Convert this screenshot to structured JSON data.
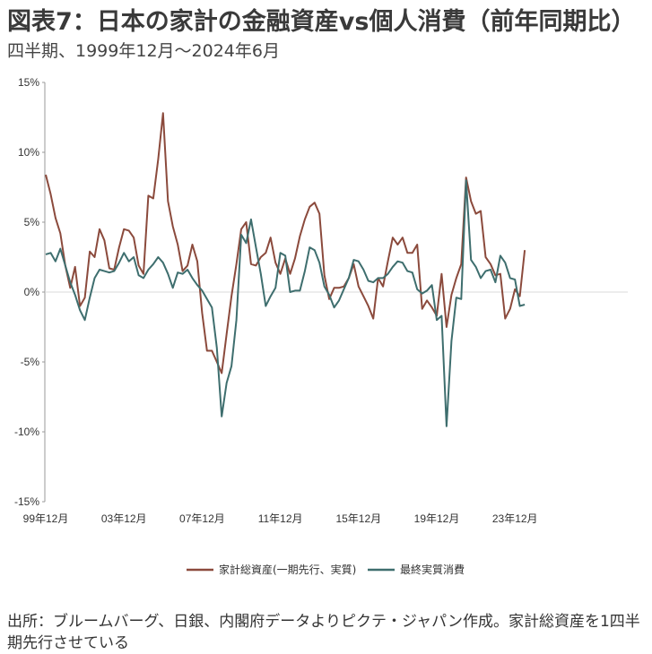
{
  "title": "図表7：日本の家計の金融資産vs個人消費（前年同期比）",
  "subtitle": "四半期、1999年12月～2024年6月",
  "source": "出所：ブルームバーグ、日銀、内閣府データよりピクテ・ジャパン作成。家計総資産を1四半期先行させている",
  "chart_data": {
    "type": "line",
    "title": "図表7：日本の家計の金融資産vs個人消費（前年同期比）",
    "subtitle": "四半期、1999年12月～2024年6月",
    "xlabel": "",
    "ylabel": "",
    "x_start": "1999-12",
    "x_step": "quarter",
    "x_ticks": [
      {
        "label": "99年12月",
        "index": 0
      },
      {
        "label": "03年12月",
        "index": 16
      },
      {
        "label": "07年12月",
        "index": 32
      },
      {
        "label": "11年12月",
        "index": 48
      },
      {
        "label": "15年12月",
        "index": 64
      },
      {
        "label": "19年12月",
        "index": 80
      },
      {
        "label": "23年12月",
        "index": 96
      }
    ],
    "y_ticks": [
      "15%",
      "10%",
      "5%",
      "0%",
      "-5%",
      "-10%",
      "-15%"
    ],
    "ylim": [
      -15,
      15
    ],
    "grid": false,
    "legend_position": "bottom",
    "series": [
      {
        "name": "家計総資産(一期先行、実質)",
        "color": "#8B4A3C",
        "values": [
          8.4,
          7.0,
          5.3,
          4.2,
          1.9,
          0.3,
          1.8,
          -1.0,
          -0.4,
          2.9,
          2.5,
          4.5,
          3.7,
          1.7,
          1.6,
          3.2,
          4.5,
          4.4,
          3.9,
          1.9,
          1.3,
          6.9,
          6.7,
          9.5,
          12.8,
          6.5,
          4.7,
          3.4,
          1.5,
          1.9,
          3.4,
          2.2,
          -1.5,
          -4.2,
          -4.2,
          -5.0,
          -5.8,
          -3.0,
          -0.3,
          2.0,
          4.5,
          5.0,
          2.0,
          1.9,
          2.5,
          2.8,
          3.9,
          2.1,
          1.3,
          2.4,
          1.3,
          2.4,
          4.0,
          5.2,
          6.1,
          6.4,
          5.6,
          1.2,
          -0.5,
          0.3,
          0.3,
          0.4,
          1.0,
          2.0,
          0.4,
          -0.3,
          -1.0,
          -1.9,
          1.0,
          0.4,
          2.2,
          3.9,
          3.4,
          3.9,
          2.8,
          2.8,
          3.4,
          -1.2,
          -0.6,
          -1.1,
          -1.7,
          1.3,
          -2.5,
          -0.2,
          1.0,
          2.0,
          8.2,
          6.5,
          5.6,
          5.8,
          2.5,
          2.0,
          1.2,
          1.3,
          -1.9,
          -1.2,
          0.2,
          -0.3,
          3.0
        ]
      },
      {
        "name": "最終実質消費",
        "color": "#3E6E6E",
        "values": [
          2.7,
          2.8,
          2.2,
          3.1,
          1.9,
          0.7,
          -0.2,
          -1.3,
          -2.0,
          -0.4,
          1.0,
          1.6,
          1.5,
          1.4,
          1.5,
          2.1,
          2.8,
          2.2,
          2.5,
          1.2,
          1.0,
          1.6,
          2.0,
          2.5,
          2.1,
          1.3,
          0.3,
          1.4,
          1.3,
          1.6,
          1.0,
          0.5,
          0.1,
          -0.5,
          -1.1,
          -4.0,
          -8.9,
          -6.5,
          -5.3,
          -2.0,
          4.1,
          3.5,
          5.2,
          3.2,
          1.3,
          -1.0,
          -0.3,
          0.3,
          2.8,
          2.6,
          0.0,
          0.1,
          0.1,
          1.5,
          3.2,
          3.0,
          2.1,
          0.4,
          -0.2,
          -1.1,
          -0.6,
          0.2,
          1.0,
          2.3,
          2.2,
          1.6,
          0.8,
          0.7,
          1.0,
          1.0,
          1.3,
          1.8,
          2.2,
          2.1,
          1.5,
          1.4,
          0.2,
          -0.1,
          0.1,
          0.5,
          -2.0,
          -1.7,
          -9.6,
          -3.5,
          -0.4,
          -0.5,
          8.0,
          2.3,
          1.8,
          1.0,
          1.5,
          1.6,
          0.7,
          2.6,
          2.1,
          1.0,
          0.9,
          -1.0,
          -0.9
        ]
      }
    ]
  }
}
